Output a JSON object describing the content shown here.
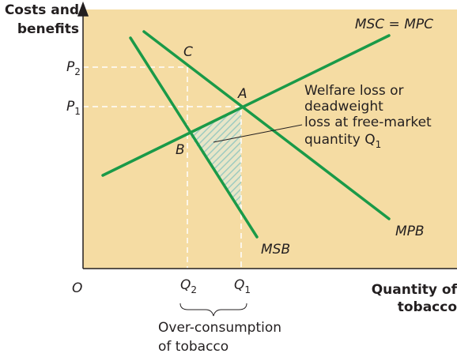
{
  "axes": {
    "y_label": [
      "Costs and",
      "benefits"
    ],
    "x_label": [
      "Quantity of",
      "tobacco"
    ],
    "origin": "O"
  },
  "curves": {
    "msc": "MSC = MPC",
    "mpb": "MPB",
    "msb": "MSB"
  },
  "points": {
    "a": "A",
    "b": "B",
    "c": "C"
  },
  "levels": {
    "p2": {
      "base": "P",
      "sub": "2"
    },
    "p1": {
      "base": "P",
      "sub": "1"
    },
    "q2": {
      "base": "Q",
      "sub": "2"
    },
    "q1": {
      "base": "Q",
      "sub": "1"
    }
  },
  "annotation": {
    "lines": [
      "Welfare loss or",
      "deadweight",
      "loss at free-market"
    ],
    "last": {
      "base": "quantity Q",
      "sub": "1"
    }
  },
  "brace_label": [
    "Over-consumption",
    "of tobacco"
  ]
}
